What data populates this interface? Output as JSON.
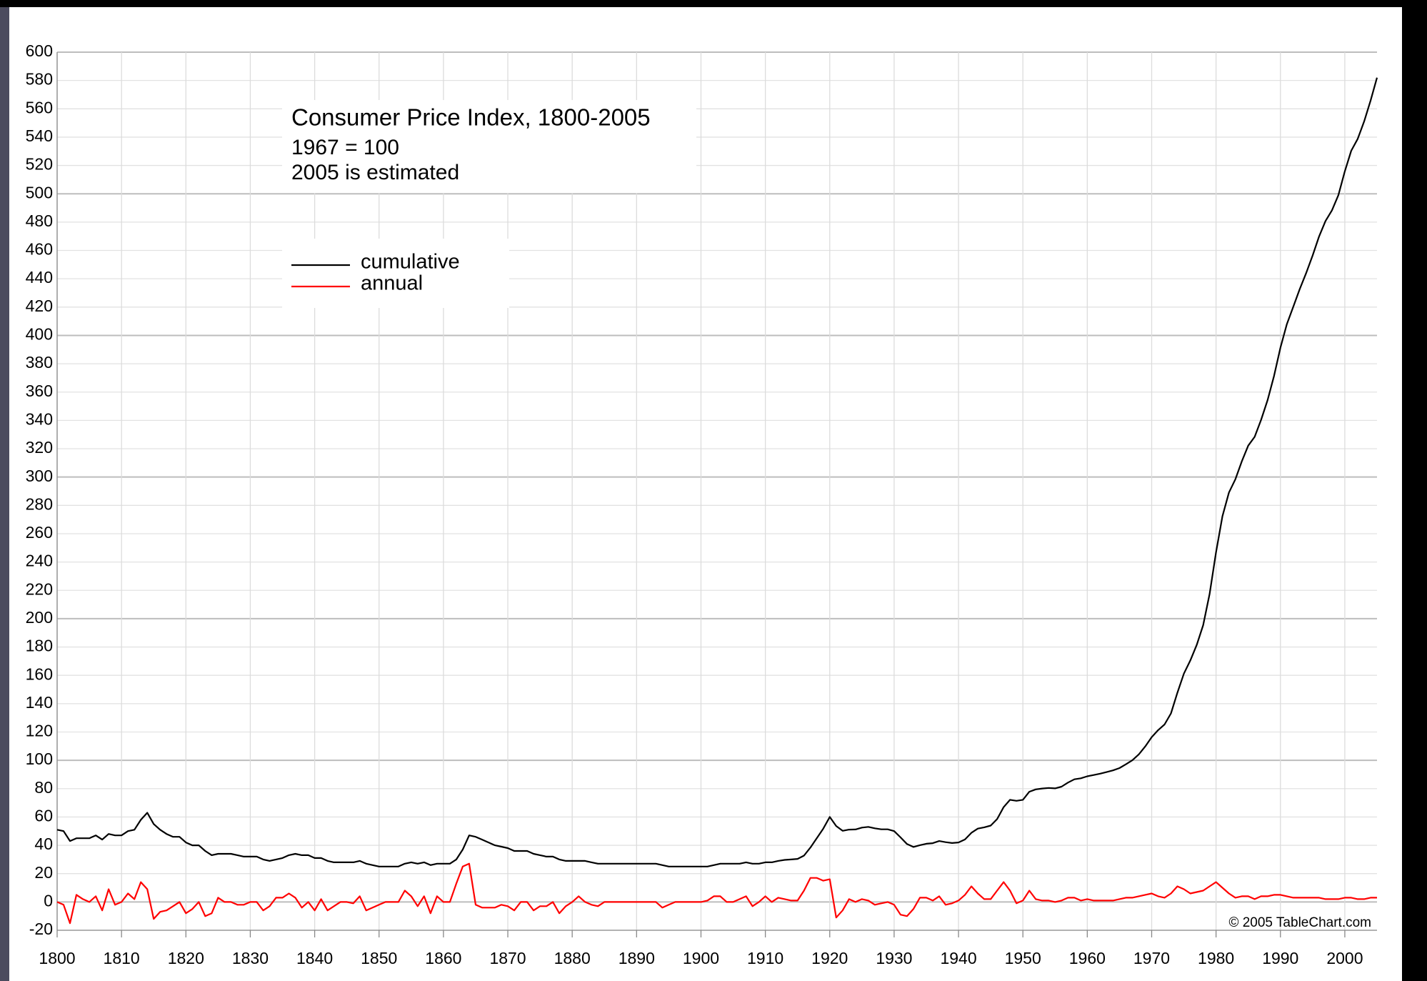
{
  "chart_data": {
    "type": "line",
    "title": "Consumer Price Index, 1800-2005",
    "subtitle": [
      "1967 = 100",
      "2005 is estimated"
    ],
    "annotation": "© 2005 TableChart.com",
    "x": [
      1800,
      1801,
      1802,
      1803,
      1804,
      1805,
      1806,
      1807,
      1808,
      1809,
      1810,
      1811,
      1812,
      1813,
      1814,
      1815,
      1816,
      1817,
      1818,
      1819,
      1820,
      1821,
      1822,
      1823,
      1824,
      1825,
      1826,
      1827,
      1828,
      1829,
      1830,
      1831,
      1832,
      1833,
      1834,
      1835,
      1836,
      1837,
      1838,
      1839,
      1840,
      1841,
      1842,
      1843,
      1844,
      1845,
      1846,
      1847,
      1848,
      1849,
      1850,
      1851,
      1852,
      1853,
      1854,
      1855,
      1856,
      1857,
      1858,
      1859,
      1860,
      1861,
      1862,
      1863,
      1864,
      1865,
      1866,
      1867,
      1868,
      1869,
      1870,
      1871,
      1872,
      1873,
      1874,
      1875,
      1876,
      1877,
      1878,
      1879,
      1880,
      1881,
      1882,
      1883,
      1884,
      1885,
      1886,
      1887,
      1888,
      1889,
      1890,
      1891,
      1892,
      1893,
      1894,
      1895,
      1896,
      1897,
      1898,
      1899,
      1900,
      1901,
      1902,
      1903,
      1904,
      1905,
      1906,
      1907,
      1908,
      1909,
      1910,
      1911,
      1912,
      1913,
      1914,
      1915,
      1916,
      1917,
      1918,
      1919,
      1920,
      1921,
      1922,
      1923,
      1924,
      1925,
      1926,
      1927,
      1928,
      1929,
      1930,
      1931,
      1932,
      1933,
      1934,
      1935,
      1936,
      1937,
      1938,
      1939,
      1940,
      1941,
      1942,
      1943,
      1944,
      1945,
      1946,
      1947,
      1948,
      1949,
      1950,
      1951,
      1952,
      1953,
      1954,
      1955,
      1956,
      1957,
      1958,
      1959,
      1960,
      1961,
      1962,
      1963,
      1964,
      1965,
      1966,
      1967,
      1968,
      1969,
      1970,
      1971,
      1972,
      1973,
      1974,
      1975,
      1976,
      1977,
      1978,
      1979,
      1980,
      1981,
      1982,
      1983,
      1984,
      1985,
      1986,
      1987,
      1988,
      1989,
      1990,
      1991,
      1992,
      1993,
      1994,
      1995,
      1996,
      1997,
      1998,
      1999,
      2000,
      2001,
      2002,
      2003,
      2004,
      2005
    ],
    "series": [
      {
        "name": "cumulative",
        "color": "#000000",
        "values": [
          51,
          50,
          43,
          45,
          45,
          45,
          47,
          44,
          48,
          47,
          47,
          50,
          51,
          58,
          63,
          55,
          51,
          48,
          46,
          46,
          42,
          40,
          40,
          36,
          33,
          34,
          34,
          34,
          33,
          32,
          32,
          32,
          30,
          29,
          30,
          31,
          33,
          34,
          33,
          33,
          31,
          31,
          29,
          28,
          28,
          28,
          28,
          29,
          27,
          26,
          25,
          25,
          25,
          25,
          27,
          28,
          27,
          28,
          26,
          27,
          27,
          27,
          30,
          37,
          47,
          46,
          44,
          42,
          40,
          39,
          38,
          36,
          36,
          36,
          34,
          33,
          32,
          32,
          30,
          29,
          29,
          29,
          29,
          28,
          27,
          27,
          27,
          27,
          27,
          27,
          27,
          27,
          27,
          27,
          26,
          25,
          25,
          25,
          25,
          25,
          25,
          25,
          26,
          27,
          27,
          27,
          27,
          28,
          27,
          27,
          28,
          28,
          29,
          29.7,
          30,
          30.4,
          32.7,
          38.4,
          45.1,
          51.8,
          60,
          53.6,
          50.2,
          51.1,
          51.2,
          52.5,
          53,
          52,
          51.3,
          51.3,
          50,
          45.6,
          40.9,
          38.8,
          40.1,
          41.1,
          41.5,
          43,
          42.2,
          41.6,
          42,
          44.1,
          48.8,
          51.8,
          52.7,
          53.9,
          58.5,
          66.9,
          72.1,
          71.4,
          72.1,
          77.8,
          79.5,
          80.1,
          80.5,
          80.2,
          81.4,
          84.3,
          86.6,
          87.3,
          88.7,
          89.6,
          90.6,
          91.7,
          92.9,
          94.5,
          97.2,
          100,
          104.2,
          109.8,
          116.3,
          121.3,
          125.3,
          133.1,
          147.7,
          161.2,
          170.5,
          181.5,
          195.4,
          217.4,
          246.8,
          272.4,
          289.1,
          298.4,
          311.1,
          322.2,
          328.4,
          340.4,
          354.3,
          371.3,
          391.4,
          408,
          420.3,
          432.7,
          444,
          456.5,
          469.9,
          480.8,
          488.3,
          499,
          515.8,
          530.4,
          538.8,
          551.1,
          565.8,
          582
        ]
      },
      {
        "name": "annual",
        "color": "#ff0000",
        "values": [
          0,
          -2,
          -15,
          5,
          2,
          0,
          4,
          -6,
          9,
          -2,
          0,
          6,
          2,
          14,
          9,
          -12,
          -7,
          -6,
          -3,
          0,
          -8,
          -5,
          0,
          -10,
          -8,
          3,
          0,
          0,
          -2,
          -2,
          0,
          0,
          -6,
          -3,
          3,
          3,
          6,
          3,
          -4,
          0,
          -6,
          2,
          -6,
          -3,
          0,
          0,
          -1,
          4,
          -6,
          -4,
          -2,
          0,
          0,
          0,
          8,
          4,
          -3,
          4,
          -8,
          4,
          0,
          0,
          13,
          25,
          27,
          -2,
          -4,
          -4,
          -4,
          -2,
          -3,
          -6,
          0,
          0,
          -6,
          -3,
          -3,
          0,
          -8,
          -3,
          0,
          4,
          0,
          -2,
          -3,
          0,
          0,
          0,
          0,
          0,
          0,
          0,
          0,
          0,
          -4,
          -2,
          0,
          0,
          0,
          0,
          0,
          1,
          4,
          4,
          0,
          0,
          2,
          4,
          -3,
          0,
          4,
          0,
          3,
          2,
          1,
          1,
          8,
          17,
          17,
          15,
          16,
          -11,
          -6,
          2,
          0,
          2,
          1,
          -2,
          -1,
          0,
          -2,
          -9,
          -10,
          -5,
          3,
          3,
          1,
          4,
          -2,
          -1,
          1,
          5,
          11,
          6,
          2,
          2,
          8,
          14,
          8,
          -1,
          1,
          8,
          2,
          1,
          1,
          0,
          1,
          3,
          3,
          1,
          2,
          1,
          1,
          1,
          1,
          2,
          3,
          3,
          4,
          5,
          6,
          4,
          3,
          6,
          11,
          9,
          6,
          7,
          8,
          11,
          14,
          10,
          6,
          3,
          4,
          4,
          2,
          4,
          4,
          5,
          5,
          4,
          3,
          3,
          3,
          3,
          3,
          2,
          2,
          2,
          3,
          3,
          2,
          2,
          3,
          3
        ]
      }
    ],
    "xlim": [
      1800,
      2005
    ],
    "xticks": [
      1800,
      1810,
      1820,
      1830,
      1840,
      1850,
      1860,
      1870,
      1880,
      1890,
      1900,
      1910,
      1920,
      1930,
      1940,
      1950,
      1960,
      1970,
      1980,
      1990,
      2000
    ],
    "ylim": [
      -20,
      600
    ],
    "yticks": [
      -20,
      0,
      20,
      40,
      60,
      80,
      100,
      120,
      140,
      160,
      180,
      200,
      220,
      240,
      260,
      280,
      300,
      320,
      340,
      360,
      380,
      400,
      420,
      440,
      460,
      480,
      500,
      520,
      540,
      560,
      580,
      600
    ],
    "grid": true
  }
}
